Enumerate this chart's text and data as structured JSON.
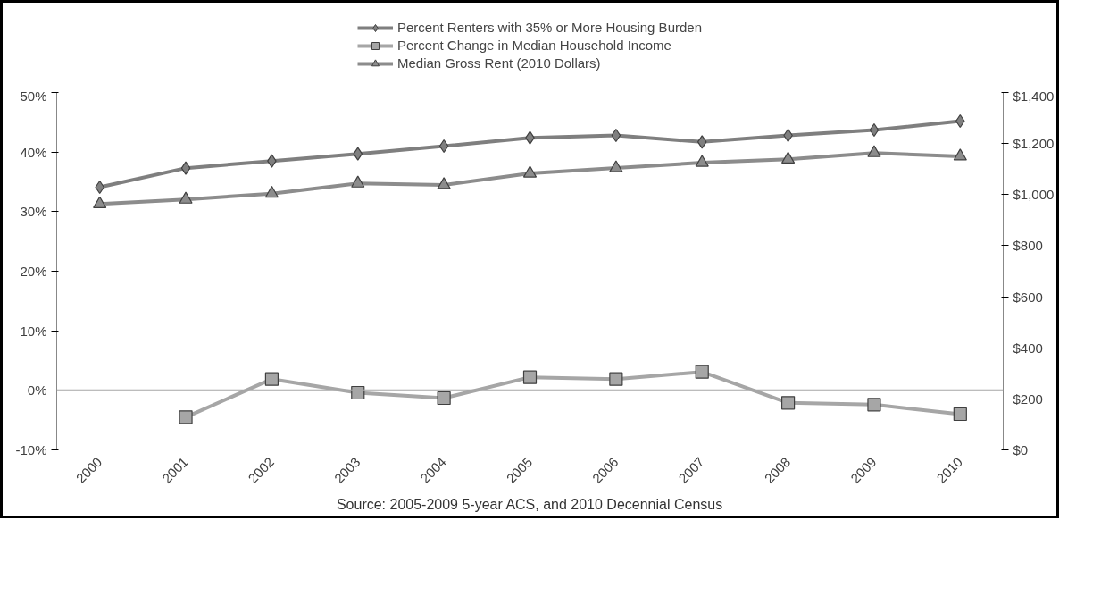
{
  "chart_data": {
    "type": "line",
    "categories": [
      "2000",
      "2001",
      "2002",
      "2003",
      "2004",
      "2005",
      "2006",
      "2007",
      "2008",
      "2009",
      "2010"
    ],
    "series": [
      {
        "name": "Percent Renters with 35% or More Housing Burden",
        "color": "#7f7f7f",
        "marker": "diamond",
        "values": [
          34.1,
          37.3,
          38.5,
          39.7,
          41.0,
          42.4,
          42.8,
          41.7,
          42.8,
          43.7,
          45.2
        ]
      },
      {
        "name": "Percent Change in Median Household Income",
        "color": "#a6a6a6",
        "marker": "square",
        "values": [
          null,
          -4.5,
          1.9,
          -0.4,
          -1.3,
          2.2,
          1.9,
          3.1,
          -2.1,
          -2.4,
          -4.0
        ]
      },
      {
        "name": "Median Gross Rent (2010 Dollars)",
        "color": "#8c8c8c",
        "marker": "triangle",
        "axis": "y2",
        "values": [
          963,
          981,
          1004,
          1044,
          1038,
          1083,
          1104,
          1125,
          1138,
          1163,
          1150
        ]
      }
    ],
    "ylim": [
      -10,
      50
    ],
    "yticks": [
      {
        "value": -10,
        "label": "-10%"
      },
      {
        "value": 0,
        "label": "0%"
      },
      {
        "value": 10,
        "label": "10%"
      },
      {
        "value": 20,
        "label": "20%"
      },
      {
        "value": 30,
        "label": "30%"
      },
      {
        "value": 40,
        "label": "40%"
      },
      {
        "value": 50,
        "label": "50%"
      }
    ],
    "y2lim": [
      0,
      1400
    ],
    "y2ticks": [
      {
        "value": 0,
        "label": "$0"
      },
      {
        "value": 200,
        "label": "$200"
      },
      {
        "value": 400,
        "label": "$400"
      },
      {
        "value": 600,
        "label": "$600"
      },
      {
        "value": 800,
        "label": "$800"
      },
      {
        "value": 1000,
        "label": "$1,000"
      },
      {
        "value": 1200,
        "label": "$1,200"
      },
      {
        "value": 1400,
        "label": "$1,400"
      }
    ],
    "ref_lines": [
      {
        "axis": "y",
        "value": 0,
        "color": "#a6a6a6"
      }
    ],
    "legend": "top",
    "line_style": "solid",
    "grid": false,
    "annotations": [
      "Source: 2005-2009 5-year ACS, and 2010 Decennial Census"
    ]
  }
}
